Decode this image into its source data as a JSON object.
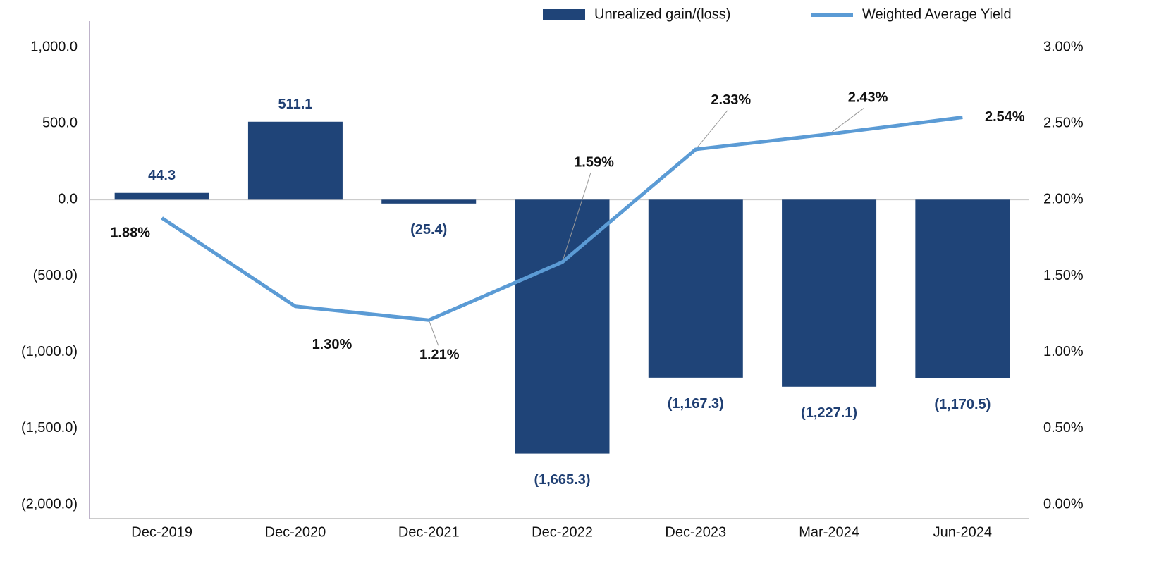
{
  "chart_data": {
    "type": "bar_line",
    "categories": [
      "Dec-2019",
      "Dec-2020",
      "Dec-2021",
      "Dec-2022",
      "Dec-2023",
      "Mar-2024",
      "Jun-2024"
    ],
    "series": [
      {
        "name": "Unrealized gain/(loss)",
        "type": "bar",
        "color": "#1f4478",
        "values": [
          44.3,
          511.1,
          -25.4,
          -1665.3,
          -1167.3,
          -1227.1,
          -1170.5
        ],
        "value_labels": [
          "44.3",
          "511.1",
          "(25.4)",
          "(1,665.3)",
          "(1,167.3)",
          "(1,227.1)",
          "(1,170.5)"
        ]
      },
      {
        "name": "Weighted Average Yield",
        "type": "line",
        "axis": "y2",
        "color": "#5b9bd5",
        "values": [
          1.88,
          1.3,
          1.21,
          1.59,
          2.33,
          2.43,
          2.54
        ],
        "value_labels": [
          "1.88%",
          "1.30%",
          "1.21%",
          "1.59%",
          "2.33%",
          "2.43%",
          "2.54%"
        ]
      }
    ],
    "ylim": [
      -2000,
      1000
    ],
    "yticks": [
      {
        "value": -2000,
        "label": "(2,000.0)"
      },
      {
        "value": -1500,
        "label": "(1,500.0)"
      },
      {
        "value": -1000,
        "label": "(1,000.0)"
      },
      {
        "value": -500,
        "label": "(500.0)"
      },
      {
        "value": 0,
        "label": "0.0"
      },
      {
        "value": 500,
        "label": "500.0"
      },
      {
        "value": 1000,
        "label": "1,000.0"
      }
    ],
    "y2lim": [
      0,
      3
    ],
    "y2ticks": [
      {
        "value": 0,
        "label": "0.00%"
      },
      {
        "value": 0.5,
        "label": "0.50%"
      },
      {
        "value": 1,
        "label": "1.00%"
      },
      {
        "value": 1.5,
        "label": "1.50%"
      },
      {
        "value": 2,
        "label": "2.00%"
      },
      {
        "value": 2.5,
        "label": "2.50%"
      },
      {
        "value": 3,
        "label": "3.00%"
      }
    ],
    "legend": "top-right",
    "grid": false
  }
}
